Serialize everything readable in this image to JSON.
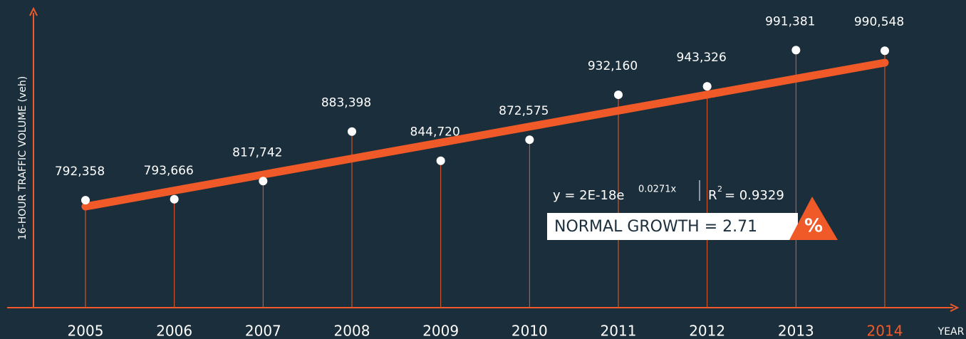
{
  "chart_data": {
    "type": "line",
    "x_label": "YEAR",
    "y_label": "16-HOUR TRAFFIC VOLUME  (veh)",
    "categories": [
      "2005",
      "2006",
      "2007",
      "2008",
      "2009",
      "2010",
      "2011",
      "2012",
      "2013",
      "2014"
    ],
    "values": [
      792358,
      793666,
      817742,
      883398,
      844720,
      872575,
      932160,
      943326,
      991381,
      990548
    ],
    "value_labels": [
      "792,358",
      "793,666",
      "817,742",
      "883,398",
      "844,720",
      "872,575",
      "932,160",
      "943,326",
      "991,381",
      "990,548"
    ],
    "ylim": [
      650000,
      1020000
    ],
    "color": "#f05a28",
    "point_color": "#ffffff",
    "highlight_category": "2014",
    "trend_equation": "y = 2E-18e",
    "trend_exponent": "0.0271x",
    "r_squared_symbol": "R",
    "r_squared_power": "2",
    "r_squared_value": "= 0.9329",
    "growth_label": "NORMAL GROWTH = 2.71",
    "growth_unit": "%"
  }
}
